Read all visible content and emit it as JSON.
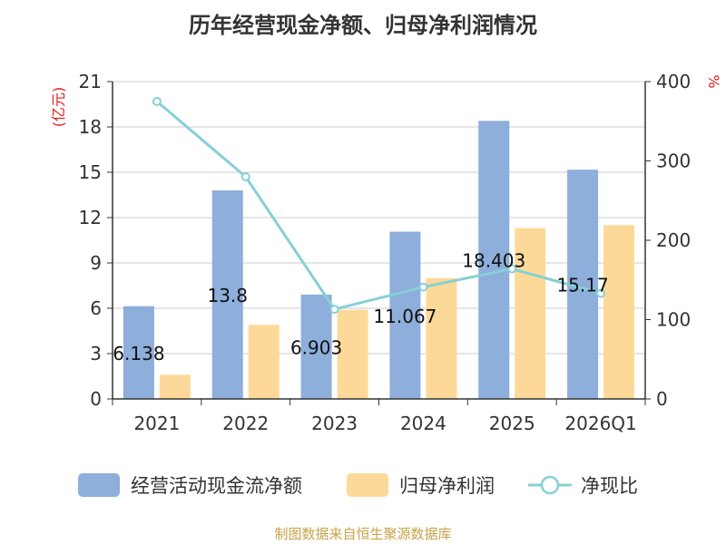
{
  "chart_data": {
    "type": "bar",
    "title": "历年经营现金净额、归母净利润情况",
    "categories": [
      "2021",
      "2022",
      "2023",
      "2024",
      "2025",
      "2026Q1"
    ],
    "series": [
      {
        "name": "经营活动现金流净额",
        "kind": "bar",
        "axis": "left",
        "color": "#8eaedb",
        "values": [
          6.138,
          13.8,
          6.903,
          11.067,
          18.403,
          15.17
        ]
      },
      {
        "name": "归母净利润",
        "kind": "bar",
        "axis": "left",
        "color": "#fdd999",
        "values": [
          1.6,
          4.9,
          5.9,
          8.0,
          11.3,
          11.5
        ]
      },
      {
        "name": "净现比",
        "kind": "line",
        "axis": "right",
        "color": "#86d0d6",
        "values": [
          375,
          280,
          113,
          141,
          164,
          133
        ]
      }
    ],
    "data_labels": [
      "6.138",
      "13.8",
      "6.903",
      "11.067",
      "18.403",
      "15.17"
    ],
    "y_left": {
      "label": "(亿元)",
      "ylim": [
        0,
        21
      ],
      "ticks": [
        "0",
        "3",
        "6",
        "9",
        "12",
        "15",
        "18",
        "21"
      ]
    },
    "y_right": {
      "label": "%",
      "ylim": [
        0,
        400
      ],
      "ticks": [
        "0",
        "100",
        "200",
        "300",
        "400"
      ]
    },
    "legend_position": "bottom",
    "grid": true
  },
  "source": "制图数据来自恒生聚源数据库"
}
